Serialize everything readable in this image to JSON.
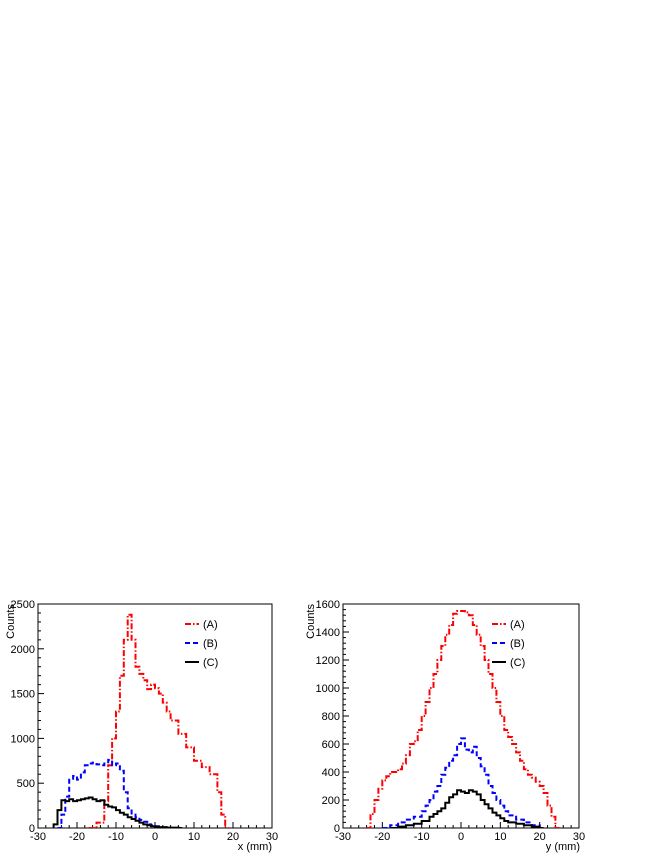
{
  "chart_data": [
    {
      "type": "histogram",
      "xlabel": "x (mm)",
      "ylabel": "Counts",
      "xlim": [
        -30,
        30
      ],
      "ylim": [
        0,
        2500
      ],
      "xticks": [
        -30,
        -20,
        -10,
        0,
        10,
        20,
        30
      ],
      "yticks": [
        0,
        500,
        1000,
        1500,
        2000,
        2500
      ],
      "legend_position": "top-right",
      "series": [
        {
          "name": "(A)",
          "color": "#ff0000",
          "dash": "6,2,1.5,2",
          "points": [
            [
              -17,
              0
            ],
            [
              -15,
              60
            ],
            [
              -13,
              300
            ],
            [
              -12,
              700
            ],
            [
              -11,
              1000
            ],
            [
              -10,
              1300
            ],
            [
              -9,
              1700
            ],
            [
              -8,
              2100
            ],
            [
              -7,
              2380
            ],
            [
              -6,
              2100
            ],
            [
              -5,
              1800
            ],
            [
              -4,
              1720
            ],
            [
              -3,
              1650
            ],
            [
              -2,
              1550
            ],
            [
              -1,
              1600
            ],
            [
              0,
              1560
            ],
            [
              1,
              1500
            ],
            [
              2,
              1400
            ],
            [
              3,
              1300
            ],
            [
              4,
              1200
            ],
            [
              6,
              1050
            ],
            [
              8,
              900
            ],
            [
              10,
              750
            ],
            [
              12,
              680
            ],
            [
              14,
              600
            ],
            [
              16,
              400
            ],
            [
              17,
              150
            ],
            [
              18,
              0
            ]
          ]
        },
        {
          "name": "(B)",
          "color": "#0000ff",
          "dash": "5,3",
          "points": [
            [
              -25,
              0
            ],
            [
              -24,
              150
            ],
            [
              -23,
              350
            ],
            [
              -22,
              550
            ],
            [
              -21,
              580
            ],
            [
              -20,
              540
            ],
            [
              -19,
              620
            ],
            [
              -18,
              700
            ],
            [
              -17,
              720
            ],
            [
              -16,
              730
            ],
            [
              -15,
              710
            ],
            [
              -14,
              700
            ],
            [
              -13,
              720
            ],
            [
              -12,
              760
            ],
            [
              -11,
              700
            ],
            [
              -10,
              720
            ],
            [
              -9,
              640
            ],
            [
              -8,
              400
            ],
            [
              -7,
              220
            ],
            [
              -6,
              150
            ],
            [
              -5,
              120
            ],
            [
              -4,
              90
            ],
            [
              -3,
              70
            ],
            [
              -2,
              40
            ],
            [
              -1,
              30
            ],
            [
              0,
              20
            ],
            [
              1,
              0
            ]
          ]
        },
        {
          "name": "(C)",
          "color": "#000000",
          "dash": "none",
          "points": [
            [
              -26,
              40
            ],
            [
              -25,
              200
            ],
            [
              -24,
              310
            ],
            [
              -23,
              300
            ],
            [
              -22,
              320
            ],
            [
              -21,
              300
            ],
            [
              -20,
              310
            ],
            [
              -19,
              320
            ],
            [
              -18,
              330
            ],
            [
              -17,
              340
            ],
            [
              -16,
              320
            ],
            [
              -15,
              300
            ],
            [
              -14,
              310
            ],
            [
              -13,
              260
            ],
            [
              -12,
              240
            ],
            [
              -11,
              230
            ],
            [
              -10,
              200
            ],
            [
              -9,
              170
            ],
            [
              -8,
              150
            ],
            [
              -7,
              120
            ],
            [
              -6,
              100
            ],
            [
              -5,
              80
            ],
            [
              -4,
              60
            ],
            [
              -3,
              40
            ],
            [
              -2,
              30
            ],
            [
              -1,
              20
            ],
            [
              0,
              15
            ],
            [
              1,
              10
            ],
            [
              3,
              5
            ],
            [
              6,
              0
            ]
          ]
        }
      ]
    },
    {
      "type": "histogram",
      "xlabel": "y (mm)",
      "ylabel": "Counts",
      "xlim": [
        -30,
        30
      ],
      "ylim": [
        0,
        1600
      ],
      "xticks": [
        -30,
        -20,
        -10,
        0,
        10,
        20,
        30
      ],
      "yticks": [
        0,
        200,
        400,
        600,
        800,
        1000,
        1200,
        1400,
        1600
      ],
      "legend_position": "top-right",
      "series": [
        {
          "name": "(A)",
          "color": "#ff0000",
          "dash": "6,2,1.5,2",
          "points": [
            [
              -24,
              0
            ],
            [
              -23,
              100
            ],
            [
              -22,
              200
            ],
            [
              -21,
              280
            ],
            [
              -20,
              340
            ],
            [
              -19,
              370
            ],
            [
              -18,
              400
            ],
            [
              -17,
              400
            ],
            [
              -16,
              420
            ],
            [
              -15,
              460
            ],
            [
              -14,
              520
            ],
            [
              -13,
              600
            ],
            [
              -12,
              620
            ],
            [
              -11,
              700
            ],
            [
              -10,
              800
            ],
            [
              -9,
              900
            ],
            [
              -8,
              1000
            ],
            [
              -7,
              1100
            ],
            [
              -6,
              1200
            ],
            [
              -5,
              1300
            ],
            [
              -4,
              1380
            ],
            [
              -3,
              1450
            ],
            [
              -2,
              1530
            ],
            [
              -1,
              1550
            ],
            [
              0,
              1550
            ],
            [
              1,
              1540
            ],
            [
              2,
              1520
            ],
            [
              3,
              1450
            ],
            [
              4,
              1380
            ],
            [
              5,
              1300
            ],
            [
              6,
              1200
            ],
            [
              7,
              1100
            ],
            [
              8,
              1000
            ],
            [
              9,
              900
            ],
            [
              10,
              800
            ],
            [
              11,
              700
            ],
            [
              12,
              650
            ],
            [
              13,
              600
            ],
            [
              14,
              540
            ],
            [
              15,
              480
            ],
            [
              16,
              420
            ],
            [
              17,
              380
            ],
            [
              18,
              360
            ],
            [
              19,
              330
            ],
            [
              20,
              300
            ],
            [
              21,
              250
            ],
            [
              22,
              160
            ],
            [
              23,
              80
            ],
            [
              24,
              0
            ]
          ]
        },
        {
          "name": "(B)",
          "color": "#0000ff",
          "dash": "5,3",
          "points": [
            [
              -20,
              0
            ],
            [
              -18,
              20
            ],
            [
              -16,
              40
            ],
            [
              -14,
              60
            ],
            [
              -12,
              80
            ],
            [
              -10,
              120
            ],
            [
              -9,
              160
            ],
            [
              -8,
              200
            ],
            [
              -7,
              260
            ],
            [
              -6,
              300
            ],
            [
              -5,
              380
            ],
            [
              -4,
              430
            ],
            [
              -3,
              480
            ],
            [
              -2,
              520
            ],
            [
              -1,
              600
            ],
            [
              0,
              640
            ],
            [
              1,
              560
            ],
            [
              2,
              540
            ],
            [
              3,
              580
            ],
            [
              4,
              500
            ],
            [
              5,
              440
            ],
            [
              6,
              380
            ],
            [
              7,
              300
            ],
            [
              8,
              250
            ],
            [
              9,
              200
            ],
            [
              10,
              160
            ],
            [
              11,
              120
            ],
            [
              12,
              90
            ],
            [
              14,
              60
            ],
            [
              16,
              40
            ],
            [
              18,
              20
            ],
            [
              20,
              0
            ]
          ]
        },
        {
          "name": "(C)",
          "color": "#000000",
          "dash": "none",
          "points": [
            [
              -18,
              0
            ],
            [
              -16,
              10
            ],
            [
              -14,
              20
            ],
            [
              -12,
              30
            ],
            [
              -10,
              50
            ],
            [
              -8,
              80
            ],
            [
              -7,
              100
            ],
            [
              -6,
              120
            ],
            [
              -5,
              140
            ],
            [
              -4,
              180
            ],
            [
              -3,
              220
            ],
            [
              -2,
              240
            ],
            [
              -1,
              270
            ],
            [
              0,
              260
            ],
            [
              1,
              250
            ],
            [
              2,
              270
            ],
            [
              3,
              260
            ],
            [
              4,
              240
            ],
            [
              5,
              200
            ],
            [
              6,
              170
            ],
            [
              7,
              140
            ],
            [
              8,
              110
            ],
            [
              9,
              90
            ],
            [
              10,
              70
            ],
            [
              11,
              50
            ],
            [
              12,
              40
            ],
            [
              14,
              30
            ],
            [
              16,
              20
            ],
            [
              18,
              10
            ],
            [
              20,
              0
            ]
          ]
        }
      ]
    }
  ]
}
